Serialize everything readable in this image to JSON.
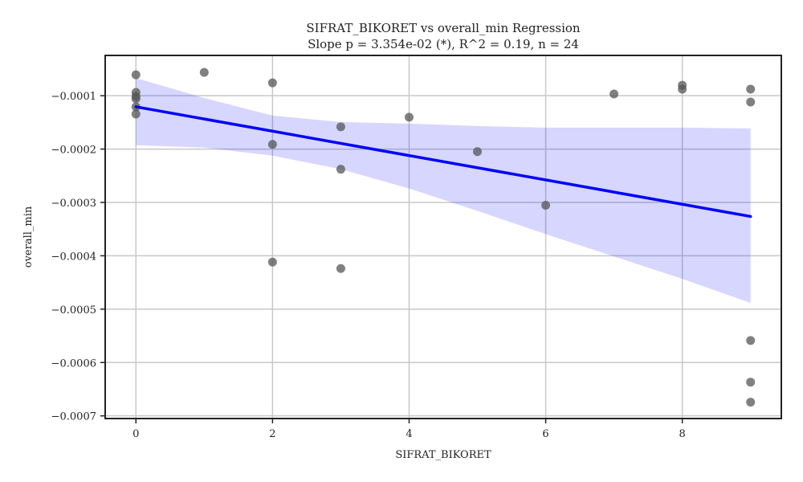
{
  "chart_data": {
    "type": "scatter",
    "title": "SIFRAT_BIKORET vs overall_min Regression",
    "subtitle": "Slope p = 3.354e-02 (*), R^2 = 0.19, n = 24",
    "xlabel": "SIFRAT_BIKORET",
    "ylabel": "overall_min",
    "xlim": [
      -0.45,
      9.45
    ],
    "ylim": [
      -0.000705,
      -2.45e-05
    ],
    "x_ticks": [
      0,
      2,
      4,
      6,
      8
    ],
    "x_tick_labels": [
      "0",
      "2",
      "4",
      "6",
      "8"
    ],
    "y_ticks": [
      -0.0001,
      -0.0002,
      -0.0003,
      -0.0004,
      -0.0005,
      -0.0006,
      -0.0007
    ],
    "y_tick_labels": [
      "−0.0001",
      "−0.0002",
      "−0.0003",
      "−0.0004",
      "−0.0005",
      "−0.0006",
      "−0.0007"
    ],
    "grid": true,
    "points": [
      {
        "x": 0,
        "y": -6.08e-05
      },
      {
        "x": 0,
        "y": -9.38e-05
      },
      {
        "x": 0,
        "y": -0.0001013
      },
      {
        "x": 0,
        "y": -0.0001058
      },
      {
        "x": 0,
        "y": -0.0001208
      },
      {
        "x": 0,
        "y": -0.0001343
      },
      {
        "x": 1,
        "y": -5.63e-05
      },
      {
        "x": 2,
        "y": -7.58e-05
      },
      {
        "x": 2,
        "y": -0.0001913
      },
      {
        "x": 2,
        "y": -0.0004118
      },
      {
        "x": 3,
        "y": -0.0001583
      },
      {
        "x": 3,
        "y": -0.0002378
      },
      {
        "x": 3,
        "y": -0.0004238
      },
      {
        "x": 4,
        "y": -0.0001403
      },
      {
        "x": 5,
        "y": -0.0002048
      },
      {
        "x": 6,
        "y": -0.0003053
      },
      {
        "x": 7,
        "y": -9.68e-05
      },
      {
        "x": 8,
        "y": -8.03e-05
      },
      {
        "x": 8,
        "y": -8.78e-05
      },
      {
        "x": 9,
        "y": -8.78e-05
      },
      {
        "x": 9,
        "y": -0.0001118
      },
      {
        "x": 9,
        "y": -0.0005588
      },
      {
        "x": 9,
        "y": -0.0006368
      },
      {
        "x": 9,
        "y": -0.0006743
      }
    ],
    "regression_line": {
      "x": [
        0,
        9
      ],
      "y": [
        -0.0001208,
        -0.0003263
      ]
    },
    "confidence_band": {
      "x": [
        0,
        1,
        2,
        3,
        4,
        5,
        6,
        7,
        8,
        9
      ],
      "upper": [
        -6.68e-05,
        -0.0001043,
        -0.0001373,
        -0.0001493,
        -0.0001523,
        -0.0001568,
        -0.0001598,
        -0.0001598,
        -0.0001598,
        -0.0001613
      ],
      "lower": [
        -0.0001928,
        -0.0001973,
        -0.0002123,
        -0.0002378,
        -0.0002738,
        -0.0003158,
        -0.0003593,
        -0.0004013,
        -0.0004433,
        -0.0004883
      ]
    },
    "colors": {
      "points": "#555555",
      "line": "#0000ff",
      "band": "#0000ff",
      "grid": "#c8c8c8",
      "axes": "#222222"
    }
  }
}
